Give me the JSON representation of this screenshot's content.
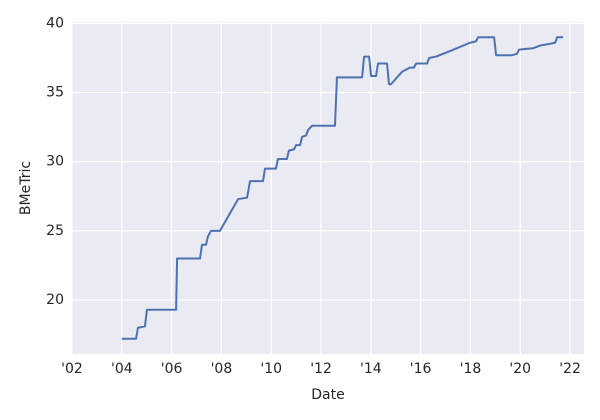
{
  "chart_data": {
    "type": "line",
    "xlabel": "Date",
    "ylabel": "BMeTric",
    "x": [
      2004.0,
      2004.57,
      2004.65,
      2004.93,
      2005.01,
      2006.18,
      2006.22,
      2007.14,
      2007.22,
      2007.38,
      2007.46,
      2007.58,
      2007.94,
      2008.67,
      2009.03,
      2009.15,
      2009.67,
      2009.75,
      2010.19,
      2010.27,
      2010.63,
      2010.71,
      2010.92,
      2011.0,
      2011.16,
      2011.24,
      2011.4,
      2011.48,
      2011.64,
      2012.56,
      2012.64,
      2013.65,
      2013.73,
      2013.93,
      2014.01,
      2014.21,
      2014.29,
      2014.65,
      2014.73,
      2014.81,
      2015.25,
      2015.57,
      2015.73,
      2015.82,
      2016.26,
      2016.34,
      2016.62,
      2017.18,
      2017.58,
      2017.98,
      2018.22,
      2018.31,
      2018.95,
      2019.03,
      2019.67,
      2019.87,
      2019.95,
      2020.51,
      2020.8,
      2021.12,
      2021.4,
      2021.48,
      2021.72
    ],
    "series": [
      {
        "name": "BMeTric",
        "color": "#4c72b0",
        "values": [
          17.2,
          17.2,
          18.0,
          18.1,
          19.3,
          19.3,
          23.0,
          23.0,
          24.0,
          24.0,
          24.6,
          25.0,
          25.0,
          27.3,
          27.4,
          28.6,
          28.6,
          29.5,
          29.5,
          30.2,
          30.2,
          30.8,
          30.9,
          31.2,
          31.2,
          31.8,
          31.9,
          32.3,
          32.6,
          32.6,
          36.1,
          36.1,
          37.6,
          37.6,
          36.2,
          36.2,
          37.1,
          37.1,
          35.6,
          35.6,
          36.5,
          36.8,
          36.8,
          37.1,
          37.1,
          37.5,
          37.6,
          38.0,
          38.3,
          38.6,
          38.7,
          39.0,
          39.0,
          37.7,
          37.7,
          37.8,
          38.1,
          38.2,
          38.4,
          38.5,
          38.6,
          39.0,
          39.0
        ]
      }
    ],
    "xlim": [
      2002.0,
      2022.56
    ],
    "xticks": [
      {
        "value": 2002,
        "label": "'02"
      },
      {
        "value": 2004,
        "label": "'04"
      },
      {
        "value": 2006,
        "label": "'06"
      },
      {
        "value": 2008,
        "label": "'08"
      },
      {
        "value": 2010,
        "label": "'10"
      },
      {
        "value": 2012,
        "label": "'12"
      },
      {
        "value": 2014,
        "label": "'14"
      },
      {
        "value": 2016,
        "label": "'16"
      },
      {
        "value": 2018,
        "label": "'18"
      },
      {
        "value": 2020,
        "label": "'20"
      },
      {
        "value": 2022,
        "label": "'22"
      }
    ],
    "ylim": [
      16.1,
      40.1
    ],
    "yticks": [
      20,
      25,
      30,
      35,
      40
    ],
    "grid": true,
    "background": "#eaeaf2"
  }
}
